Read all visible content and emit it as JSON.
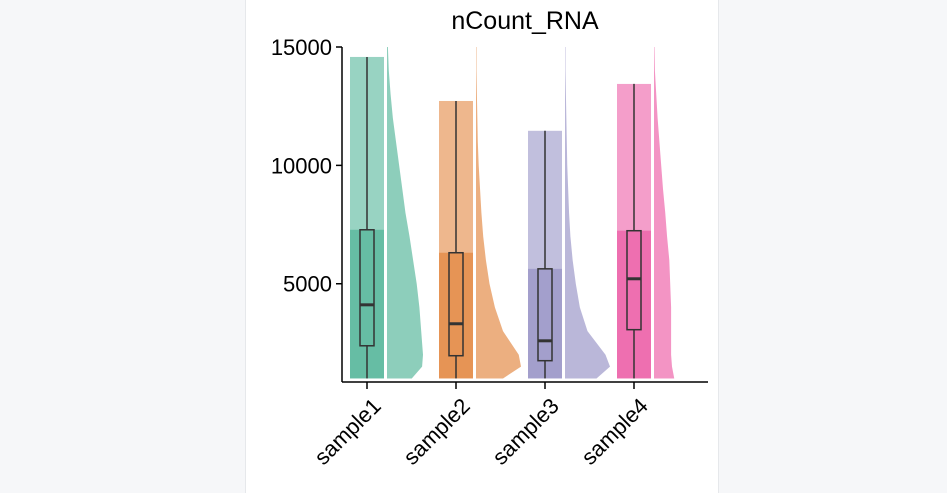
{
  "chart_data": {
    "type": "raincloud",
    "title": "nCount_RNA",
    "ylim": [
      850,
      15000
    ],
    "yticks": [
      5000,
      10000,
      15000
    ],
    "density_y": [
      1000,
      1500,
      2000,
      3000,
      4000,
      5000,
      6000,
      7000,
      8000,
      9000,
      10000,
      11000,
      12000,
      13000,
      14000,
      15000
    ],
    "series": [
      {
        "name": "sample1",
        "color": "#1b9e77",
        "min": 1000,
        "q1": 2380,
        "median": 4110,
        "q3": 7280,
        "max": 14580,
        "density": [
          0.55,
          0.78,
          0.8,
          0.76,
          0.72,
          0.66,
          0.58,
          0.5,
          0.41,
          0.34,
          0.27,
          0.2,
          0.13,
          0.08,
          0.04,
          0.02
        ]
      },
      {
        "name": "sample2",
        "color": "#d95f02",
        "min": 1000,
        "q1": 1960,
        "median": 3310,
        "q3": 6310,
        "max": 12720,
        "density": [
          0.6,
          1,
          0.95,
          0.6,
          0.42,
          0.3,
          0.22,
          0.16,
          0.12,
          0.09,
          0.06,
          0.04,
          0.03,
          0.02,
          0.01,
          0.01
        ]
      },
      {
        "name": "sample3",
        "color": "#7570b3",
        "min": 1000,
        "q1": 1750,
        "median": 2590,
        "q3": 5630,
        "max": 11460,
        "density": [
          0.7,
          1,
          0.9,
          0.5,
          0.33,
          0.24,
          0.17,
          0.12,
          0.09,
          0.07,
          0.05,
          0.04,
          0.03,
          0.02,
          0.01,
          0.01
        ]
      },
      {
        "name": "sample4",
        "color": "#e7298a",
        "min": 1000,
        "q1": 3060,
        "median": 5210,
        "q3": 7240,
        "max": 13440,
        "density": [
          0.45,
          0.4,
          0.38,
          0.38,
          0.38,
          0.36,
          0.34,
          0.29,
          0.25,
          0.2,
          0.16,
          0.12,
          0.08,
          0.05,
          0.02,
          0.01
        ]
      }
    ]
  }
}
